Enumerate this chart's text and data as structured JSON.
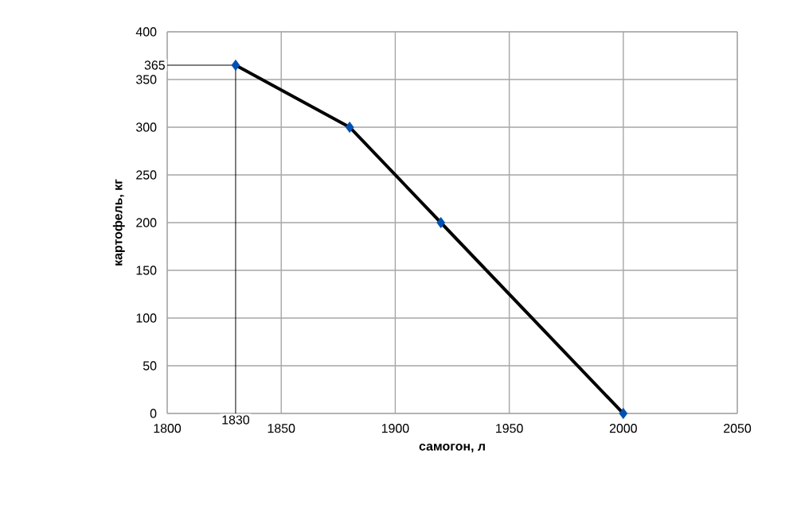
{
  "chart_data": {
    "type": "line",
    "xlabel": "самогон, л",
    "ylabel": "картофель, кг",
    "x": [
      1830,
      1880,
      1920,
      2000
    ],
    "series": [
      {
        "color": "#000000",
        "values": [
          365,
          300,
          200,
          0
        ]
      }
    ],
    "marker": "diamond",
    "grid": true,
    "xlim": [
      1800,
      2050
    ],
    "xticks": [
      1800,
      1850,
      1900,
      1950,
      2000,
      2050
    ],
    "ylim": [
      0,
      400
    ],
    "yticks": [
      0,
      50,
      100,
      150,
      200,
      250,
      300,
      350,
      400
    ],
    "annotations": [
      {
        "text": "365",
        "x": 1830,
        "y": 365
      },
      {
        "text": "1830",
        "x": 1830,
        "y": 365
      }
    ]
  }
}
